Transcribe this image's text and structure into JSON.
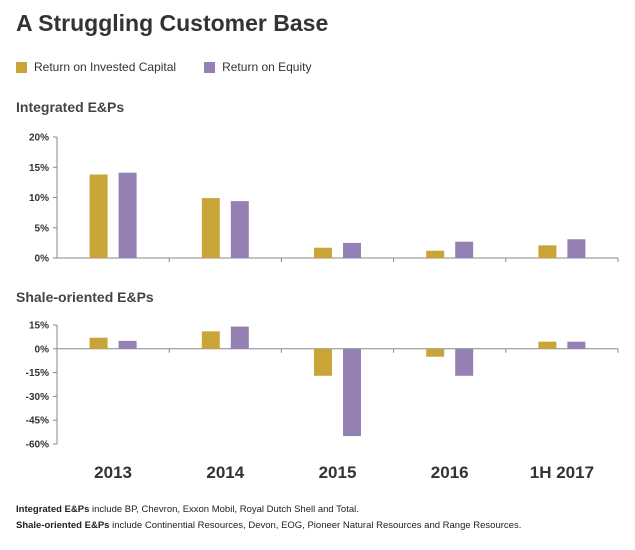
{
  "title": "A Struggling Customer Base",
  "legend": [
    {
      "label": "Return on Invested Capital",
      "color": "#C9A538"
    },
    {
      "label": "Return on Equity",
      "color": "#9580B3"
    }
  ],
  "chart_data": [
    {
      "type": "bar",
      "title": "Integrated E&Ps",
      "categories": [
        "2013",
        "2014",
        "2015",
        "2016",
        "1H 2017"
      ],
      "series": [
        {
          "name": "Return on Invested Capital",
          "values": [
            13.8,
            9.9,
            1.7,
            1.2,
            2.1
          ]
        },
        {
          "name": "Return on Equity",
          "values": [
            14.1,
            9.4,
            2.5,
            2.7,
            3.1
          ]
        }
      ],
      "ylim": [
        0,
        20
      ],
      "yticks": [
        0,
        5,
        10,
        15,
        20
      ],
      "ytick_labels": [
        "0%",
        "5%",
        "10%",
        "15%",
        "20%"
      ]
    },
    {
      "type": "bar",
      "title": "Shale-oriented E&Ps",
      "categories": [
        "2013",
        "2014",
        "2015",
        "2016",
        "1H 2017"
      ],
      "series": [
        {
          "name": "Return on Invested Capital",
          "values": [
            7,
            11,
            -17,
            -5,
            4.5
          ]
        },
        {
          "name": "Return on Equity",
          "values": [
            5,
            14,
            -55,
            -17,
            4.5
          ]
        }
      ],
      "ylim": [
        -60,
        15
      ],
      "yticks": [
        15,
        0,
        -15,
        -30,
        -45,
        -60
      ],
      "ytick_labels": [
        "15%",
        "0%",
        "-15%",
        "-30%",
        "-45%",
        "-60%"
      ]
    }
  ],
  "footnotes": [
    {
      "bold": "Integrated E&Ps",
      "text": " include BP, Chevron, Exxon Mobil, Royal Dutch Shell and Total."
    },
    {
      "bold": "Shale-oriented E&Ps",
      "text": " include Continential Resources, Devon, EOG, Pioneer Natural Resources and Range Resources."
    }
  ]
}
